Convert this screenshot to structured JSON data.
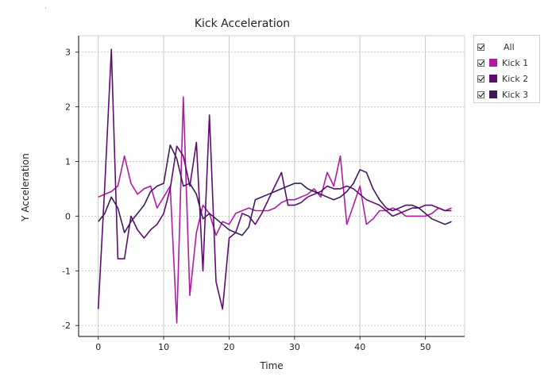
{
  "chart_data": {
    "type": "line",
    "title": "Kick Acceleration",
    "xlabel": "Time",
    "ylabel": "Y Acceleration",
    "xlim": [
      -3,
      56
    ],
    "ylim": [
      -2.2,
      3.3
    ],
    "x_ticks": [
      0,
      10,
      20,
      30,
      40,
      50
    ],
    "y_ticks": [
      -2,
      -1,
      0,
      1,
      2,
      3
    ],
    "grid": true,
    "legend_placement": "right",
    "series": [
      {
        "name": "Kick 1",
        "color": "#b21aa6",
        "values": [
          0.35,
          0.4,
          0.45,
          0.55,
          1.1,
          0.6,
          0.4,
          0.5,
          0.55,
          0.15,
          0.35,
          0.55,
          -1.95,
          2.18,
          -1.45,
          -0.3,
          0.2,
          0.05,
          -0.35,
          -0.1,
          -0.15,
          0.05,
          0.1,
          0.15,
          0.1,
          0.1,
          0.1,
          0.15,
          0.25,
          0.3,
          0.3,
          0.35,
          0.4,
          0.5,
          0.35,
          0.8,
          0.55,
          1.1,
          -0.15,
          0.2,
          0.55,
          -0.15,
          -0.05,
          0.1,
          0.1,
          0.15,
          0.1,
          0.0,
          0.0,
          0.0,
          0.0,
          0.05,
          0.15,
          0.1,
          0.15
        ]
      },
      {
        "name": "Kick 2",
        "color": "#5e0c70",
        "values": [
          -1.7,
          0.55,
          3.05,
          -0.78,
          -0.78,
          0.0,
          -0.25,
          -0.4,
          -0.25,
          -0.15,
          0.05,
          0.5,
          1.28,
          1.1,
          0.55,
          1.35,
          -1.0,
          1.85,
          -1.2,
          -1.7,
          -0.4,
          -0.3,
          0.05,
          0.0,
          -0.15,
          0.05,
          0.3,
          0.55,
          0.8,
          0.2,
          0.2,
          0.25,
          0.35,
          0.4,
          0.45,
          0.55,
          0.5,
          0.5,
          0.55,
          0.5,
          0.4,
          0.3,
          0.25,
          0.2,
          0.1,
          0.0,
          0.05,
          0.1,
          0.15,
          0.15,
          0.2,
          0.2,
          0.15,
          0.1,
          0.1
        ]
      },
      {
        "name": "Kick 3",
        "color": "#3e1b58",
        "values": [
          -0.1,
          0.05,
          0.35,
          0.15,
          -0.3,
          -0.1,
          0.05,
          0.2,
          0.45,
          0.55,
          0.6,
          1.3,
          1.05,
          0.55,
          0.6,
          0.4,
          -0.05,
          0.05,
          -0.05,
          -0.15,
          -0.25,
          -0.3,
          -0.35,
          -0.2,
          0.3,
          0.35,
          0.4,
          0.45,
          0.5,
          0.55,
          0.6,
          0.6,
          0.5,
          0.45,
          0.4,
          0.35,
          0.3,
          0.35,
          0.45,
          0.6,
          0.85,
          0.8,
          0.5,
          0.3,
          0.15,
          0.1,
          0.15,
          0.2,
          0.2,
          0.15,
          0.05,
          -0.05,
          -0.1,
          -0.15,
          -0.1
        ]
      }
    ]
  },
  "legend": {
    "all_label": "All"
  },
  "colors": {
    "grid": "#c8c8c8",
    "axis": "#333333",
    "text": "#222222"
  }
}
